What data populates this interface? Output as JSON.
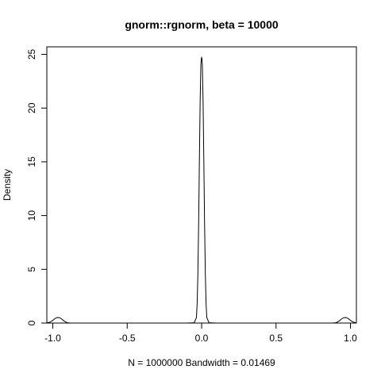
{
  "chart_data": {
    "type": "line",
    "title": "gnorm::rgnorm, beta = 10000",
    "xlabel": "N = 1000000   Bandwidth = 0.01469",
    "ylabel": "Density",
    "xlim": [
      -1.04,
      1.04
    ],
    "ylim": [
      0,
      25.7
    ],
    "xticks": [
      -1.0,
      -0.5,
      0.0,
      0.5,
      1.0
    ],
    "xtick_labels": [
      "-1.0",
      "-0.5",
      "0.0",
      "0.5",
      "1.0"
    ],
    "yticks": [
      0,
      5,
      10,
      15,
      20,
      25
    ],
    "ytick_labels": [
      "0",
      "5",
      "10",
      "15",
      "20",
      "25"
    ],
    "grid": false,
    "legend": "none",
    "series": [
      {
        "x": [
          -1.04,
          -1.02,
          -1.0,
          -0.985,
          -0.97,
          -0.955,
          -0.94,
          -0.925,
          -0.91,
          -0.9,
          -0.88,
          -0.5,
          -0.1,
          -0.05,
          -0.035,
          -0.03,
          -0.025,
          -0.02,
          -0.015,
          -0.01,
          -0.005,
          -0.002,
          0.0,
          0.002,
          0.005,
          0.01,
          0.015,
          0.02,
          0.025,
          0.03,
          0.035,
          0.05,
          0.1,
          0.5,
          0.88,
          0.9,
          0.91,
          0.925,
          0.94,
          0.955,
          0.97,
          0.985,
          1.0,
          1.02,
          1.04
        ],
        "y": [
          0.02,
          0.08,
          0.25,
          0.42,
          0.52,
          0.5,
          0.38,
          0.2,
          0.08,
          0.03,
          0.0,
          0.0,
          0.0,
          0.03,
          0.5,
          1.8,
          4.6,
          9.2,
          15.0,
          20.5,
          24.0,
          24.6,
          24.7,
          24.6,
          24.0,
          20.5,
          15.0,
          9.2,
          4.6,
          1.8,
          0.5,
          0.03,
          0.0,
          0.0,
          0.0,
          0.03,
          0.08,
          0.2,
          0.38,
          0.5,
          0.52,
          0.42,
          0.25,
          0.08,
          0.02
        ]
      }
    ]
  }
}
